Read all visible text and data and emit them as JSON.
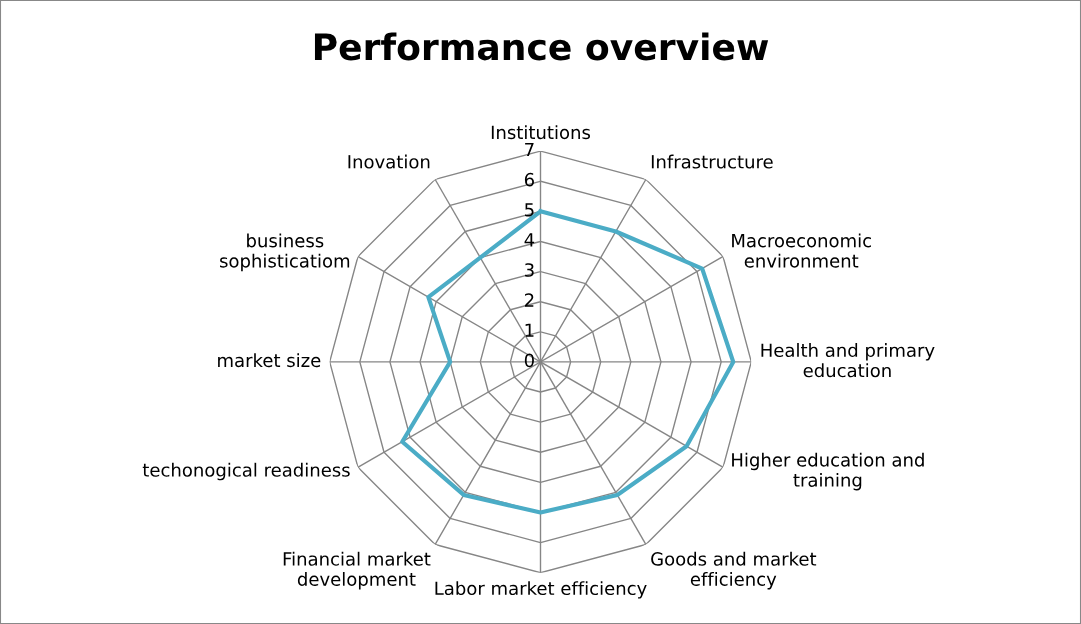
{
  "chart_data": {
    "type": "radar",
    "title": "Performance overview",
    "categories": [
      "Institutions",
      "Infrastructure",
      "Macroeconomic\nenvironment",
      "Health and primary\neducation",
      "Higher education and\ntraining",
      "Goods and market\nefficiency",
      "Labor market efficiency",
      "Financial market\ndevelopment",
      "techonogical readiness",
      "market size",
      "business\nsophisticatiom",
      "Inovation"
    ],
    "series": [
      {
        "color": "#4bacc6",
        "values": [
          5.0,
          5.0,
          6.2,
          6.4,
          5.6,
          5.1,
          5.0,
          5.1,
          5.3,
          3.0,
          4.3,
          4.0
        ]
      }
    ],
    "ylim": [
      0,
      7
    ],
    "yticks": [
      0,
      1,
      2,
      3,
      4,
      5,
      6,
      7
    ],
    "grid": true,
    "marker": "none"
  }
}
